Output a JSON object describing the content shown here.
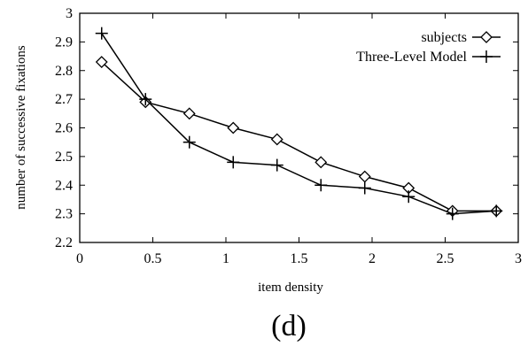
{
  "chart_data": {
    "type": "line",
    "xlabel": "item density",
    "ylabel": "number of successive fixations",
    "xlim": [
      0,
      3
    ],
    "ylim": [
      2.2,
      3
    ],
    "xticks": [
      "0",
      "0.5",
      "1",
      "1.5",
      "2",
      "2.5",
      "3"
    ],
    "yticks": [
      "2.2",
      "2.3",
      "2.4",
      "2.5",
      "2.6",
      "2.7",
      "2.8",
      "2.9",
      "3"
    ],
    "legend_position": "top-right",
    "series": [
      {
        "name": "subjects",
        "marker": "diamond",
        "x": [
          0.15,
          0.45,
          0.75,
          1.05,
          1.35,
          1.65,
          1.95,
          2.25,
          2.55,
          2.85
        ],
        "y": [
          2.83,
          2.69,
          2.65,
          2.6,
          2.56,
          2.48,
          2.43,
          2.39,
          2.31,
          2.31
        ]
      },
      {
        "name": "Three-Level Model",
        "marker": "plus",
        "x": [
          0.15,
          0.45,
          0.75,
          1.05,
          1.35,
          1.65,
          1.95,
          2.25,
          2.55,
          2.85
        ],
        "y": [
          2.93,
          2.7,
          2.55,
          2.48,
          2.47,
          2.4,
          2.39,
          2.36,
          2.3,
          2.31
        ]
      }
    ]
  },
  "caption": "(d)"
}
